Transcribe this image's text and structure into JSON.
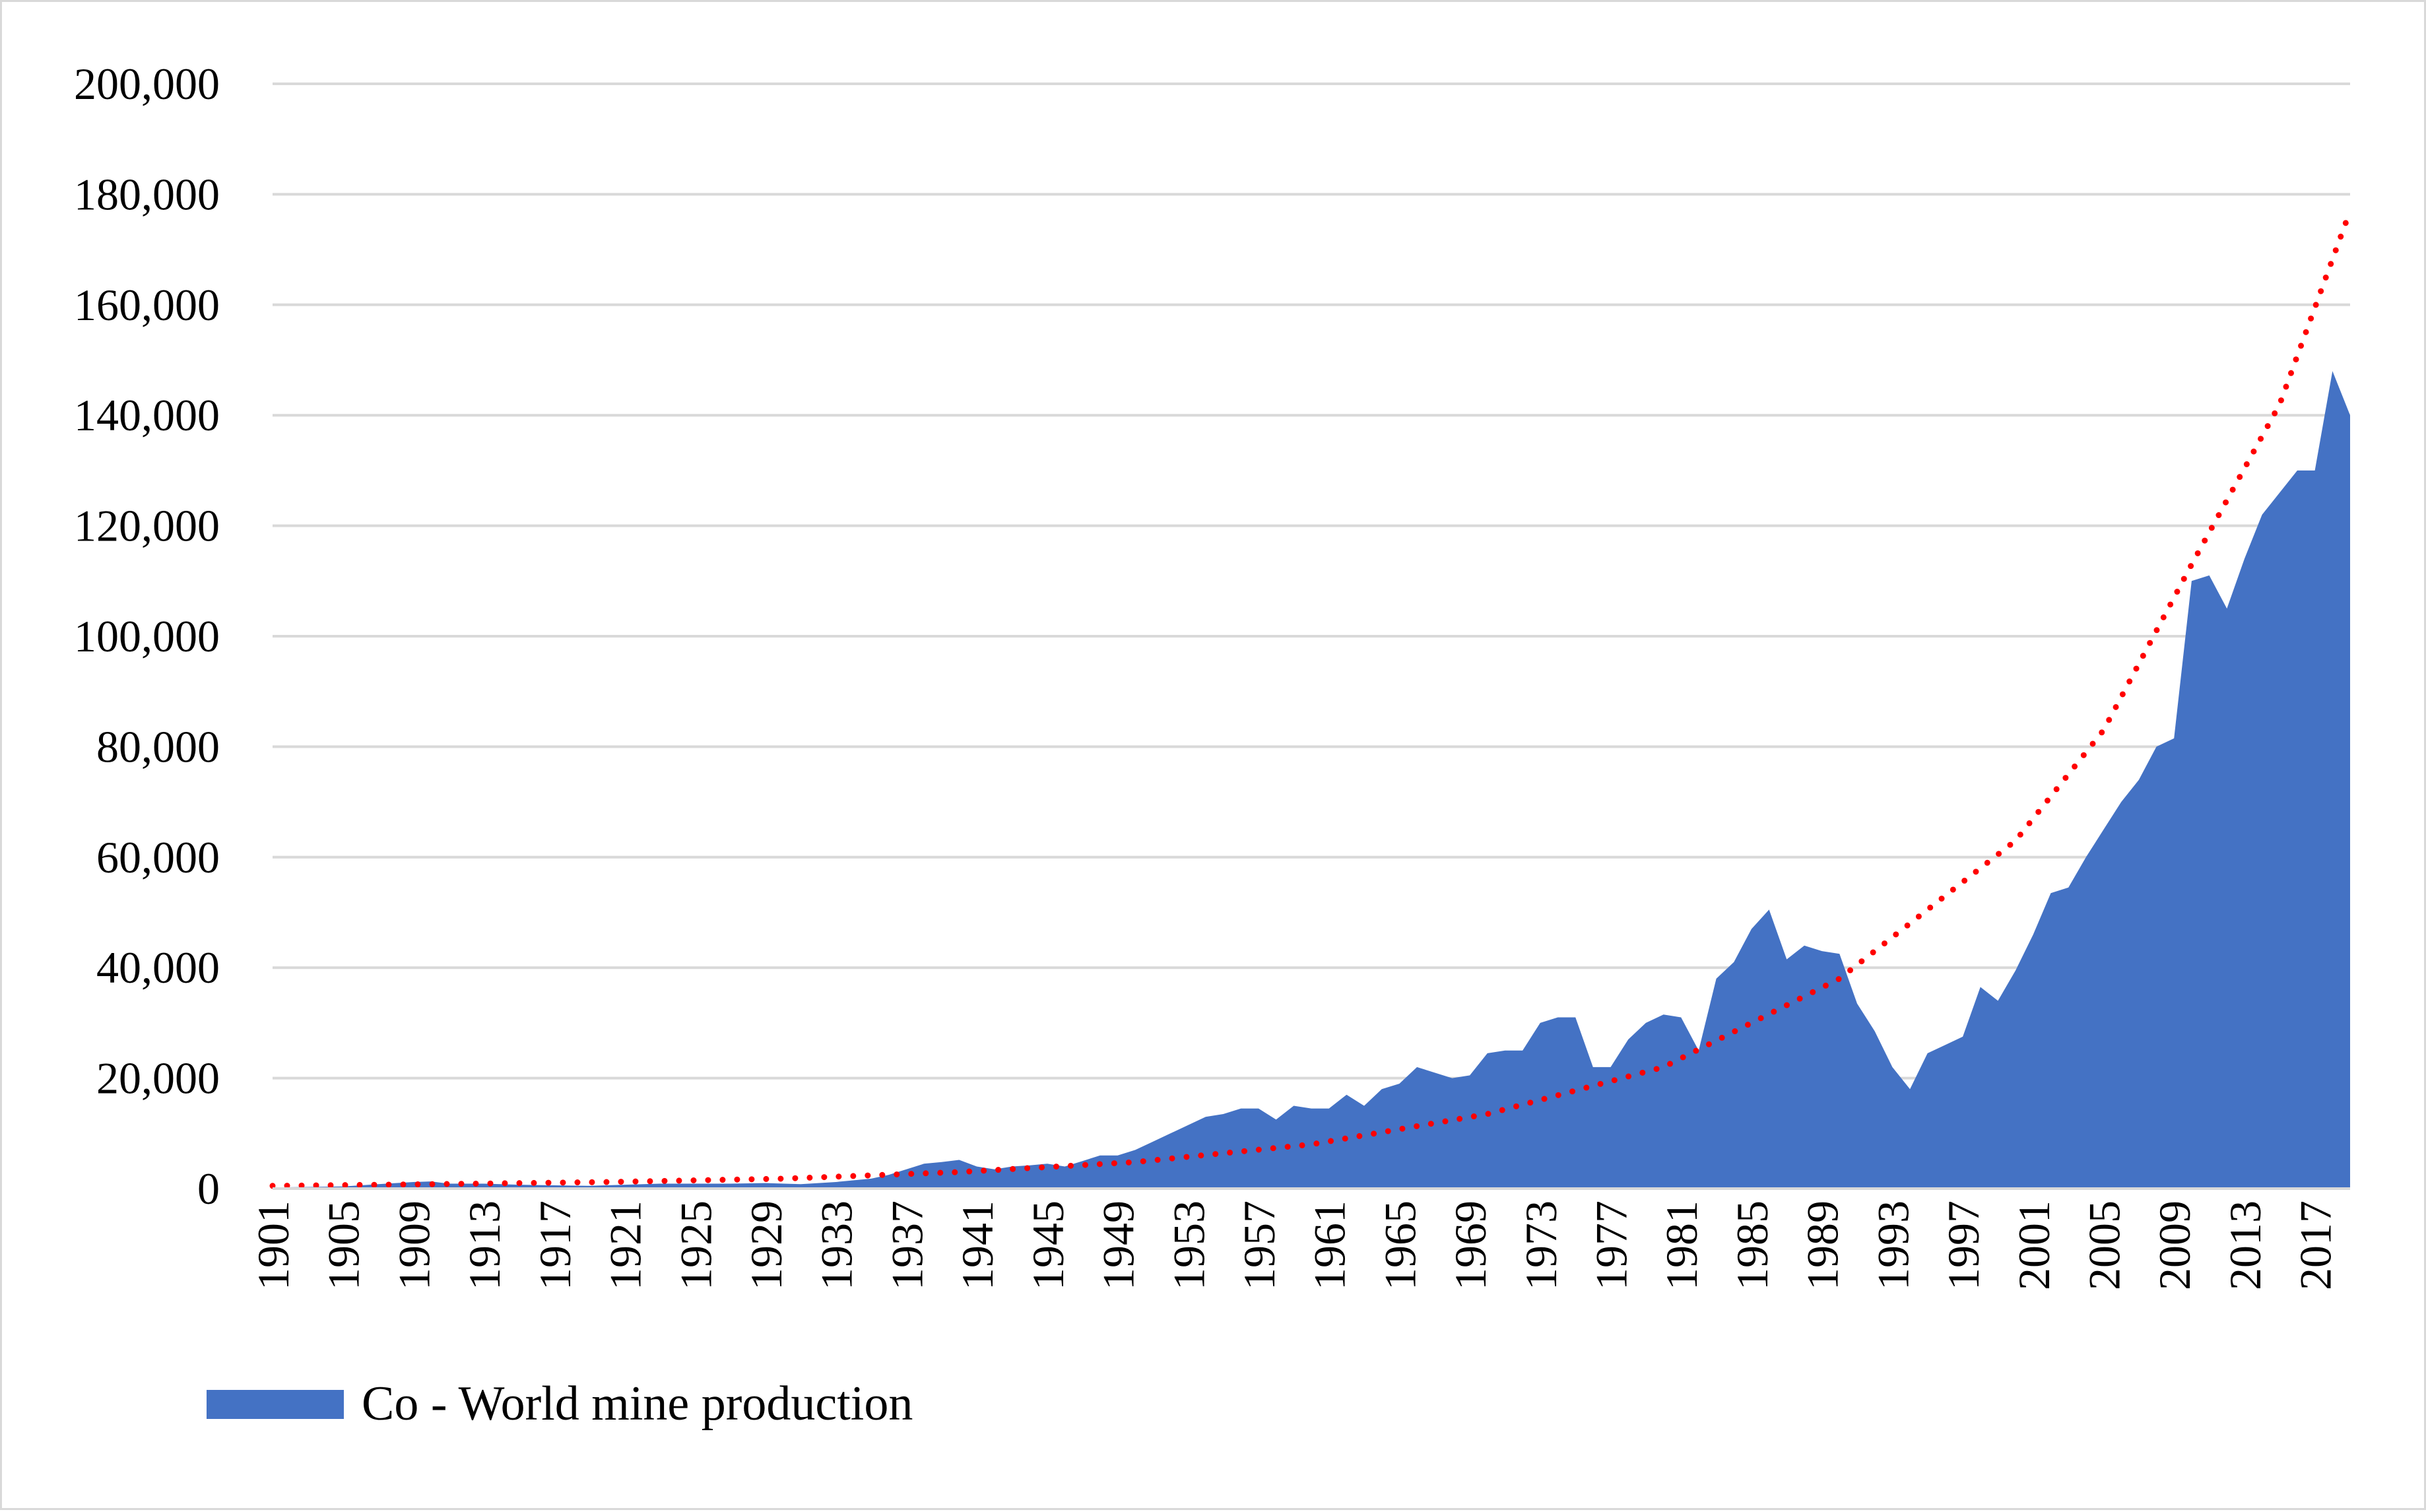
{
  "chart_data": {
    "type": "area",
    "title": "",
    "xlabel": "",
    "ylabel": "",
    "ylim": [
      0,
      200000
    ],
    "y_ticks": [
      0,
      20000,
      40000,
      60000,
      80000,
      100000,
      120000,
      140000,
      160000,
      180000,
      200000
    ],
    "y_tick_labels": [
      "0",
      "20,000",
      "40,000",
      "60,000",
      "80,000",
      "100,000",
      "120,000",
      "140,000",
      "160,000",
      "180,000",
      "200,000"
    ],
    "x_tick_labels": [
      "1901",
      "1905",
      "1909",
      "1913",
      "1917",
      "1921",
      "1925",
      "1929",
      "1933",
      "1937",
      "1941",
      "1945",
      "1949",
      "1953",
      "1957",
      "1961",
      "1965",
      "1969",
      "1973",
      "1977",
      "1981",
      "1985",
      "1989",
      "1993",
      "1997",
      "2001",
      "2005",
      "2009",
      "2013",
      "2017"
    ],
    "grid": true,
    "legend_position": "bottom-left",
    "x_start": 1901,
    "x_end": 2019,
    "series": [
      {
        "name": "Co - World mine production",
        "color": "#4472c4",
        "points": [
          [
            1901,
            200
          ],
          [
            1903,
            300
          ],
          [
            1905,
            400
          ],
          [
            1907,
            800
          ],
          [
            1909,
            1200
          ],
          [
            1910,
            1300
          ],
          [
            1911,
            900
          ],
          [
            1913,
            900
          ],
          [
            1915,
            700
          ],
          [
            1917,
            600
          ],
          [
            1919,
            500
          ],
          [
            1921,
            700
          ],
          [
            1923,
            900
          ],
          [
            1925,
            900
          ],
          [
            1927,
            900
          ],
          [
            1929,
            1000
          ],
          [
            1931,
            800
          ],
          [
            1933,
            1200
          ],
          [
            1935,
            1800
          ],
          [
            1936,
            2500
          ],
          [
            1937,
            3500
          ],
          [
            1938,
            4500
          ],
          [
            1939,
            4800
          ],
          [
            1940,
            5200
          ],
          [
            1941,
            4000
          ],
          [
            1942,
            3500
          ],
          [
            1943,
            4000
          ],
          [
            1944,
            4200
          ],
          [
            1945,
            4500
          ],
          [
            1946,
            4000
          ],
          [
            1947,
            5000
          ],
          [
            1948,
            6000
          ],
          [
            1949,
            6000
          ],
          [
            1950,
            7000
          ],
          [
            1951,
            8500
          ],
          [
            1952,
            10000
          ],
          [
            1953,
            11500
          ],
          [
            1954,
            13000
          ],
          [
            1955,
            13500
          ],
          [
            1956,
            14500
          ],
          [
            1957,
            14500
          ],
          [
            1958,
            12500
          ],
          [
            1959,
            15000
          ],
          [
            1960,
            14500
          ],
          [
            1961,
            14500
          ],
          [
            1962,
            17000
          ],
          [
            1963,
            15000
          ],
          [
            1964,
            18000
          ],
          [
            1965,
            19000
          ],
          [
            1966,
            22000
          ],
          [
            1967,
            21000
          ],
          [
            1968,
            20000
          ],
          [
            1969,
            20500
          ],
          [
            1970,
            24500
          ],
          [
            1971,
            25000
          ],
          [
            1972,
            25000
          ],
          [
            1973,
            30000
          ],
          [
            1974,
            31000
          ],
          [
            1975,
            31000
          ],
          [
            1976,
            22000
          ],
          [
            1977,
            22000
          ],
          [
            1978,
            27000
          ],
          [
            1979,
            30000
          ],
          [
            1980,
            31500
          ],
          [
            1981,
            31000
          ],
          [
            1982,
            25000
          ],
          [
            1983,
            38000
          ],
          [
            1984,
            41000
          ],
          [
            1985,
            47000
          ],
          [
            1986,
            50500
          ],
          [
            1987,
            41500
          ],
          [
            1988,
            44000
          ],
          [
            1989,
            43000
          ],
          [
            1990,
            42500
          ],
          [
            1991,
            33500
          ],
          [
            1992,
            28500
          ],
          [
            1993,
            22000
          ],
          [
            1994,
            18000
          ],
          [
            1995,
            24500
          ],
          [
            1996,
            26000
          ],
          [
            1997,
            27500
          ],
          [
            1998,
            36500
          ],
          [
            1999,
            34000
          ],
          [
            2000,
            39500
          ],
          [
            2001,
            46000
          ],
          [
            2002,
            53500
          ],
          [
            2003,
            54500
          ],
          [
            2004,
            60000
          ],
          [
            2005,
            65000
          ],
          [
            2006,
            70000
          ],
          [
            2007,
            74000
          ],
          [
            2008,
            80000
          ],
          [
            2009,
            81500
          ],
          [
            2010,
            110000
          ],
          [
            2011,
            111000
          ],
          [
            2012,
            105000
          ],
          [
            2013,
            114000
          ],
          [
            2014,
            122000
          ],
          [
            2015,
            126000
          ],
          [
            2016,
            130000
          ],
          [
            2017,
            130000
          ],
          [
            2018,
            148000
          ],
          [
            2019,
            140000
          ]
        ]
      },
      {
        "name": "Exponential trendline",
        "color": "#ff0000",
        "line_style": "dotted",
        "points": [
          [
            1901,
            500
          ],
          [
            1910,
            800
          ],
          [
            1920,
            1200
          ],
          [
            1930,
            1800
          ],
          [
            1940,
            3000
          ],
          [
            1950,
            4800
          ],
          [
            1960,
            8000
          ],
          [
            1970,
            13500
          ],
          [
            1980,
            22000
          ],
          [
            1990,
            38000
          ],
          [
            2000,
            63000
          ],
          [
            2005,
            83000
          ],
          [
            2010,
            113000
          ],
          [
            2015,
            142000
          ],
          [
            2019,
            177000
          ]
        ]
      }
    ],
    "legend": [
      "Co - World mine production"
    ]
  }
}
